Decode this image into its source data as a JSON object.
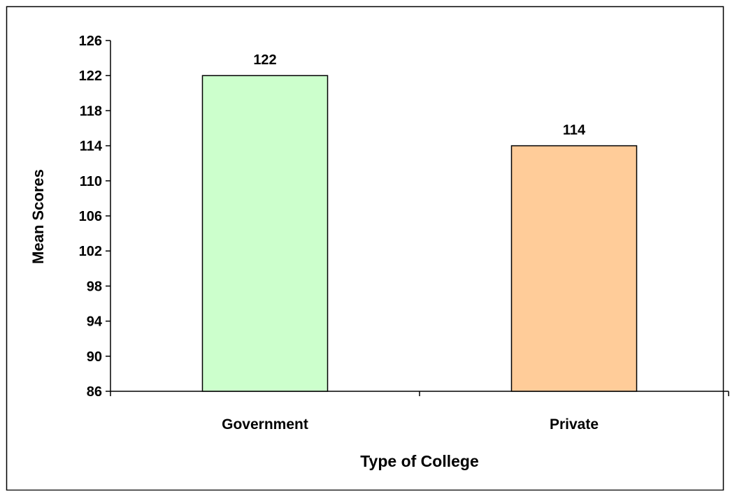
{
  "chart_data": {
    "type": "bar",
    "categories": [
      "Government",
      "Private"
    ],
    "values": [
      122,
      114
    ],
    "data_labels": [
      "122",
      "114"
    ],
    "title": "",
    "xlabel": "Type of College",
    "ylabel": "Mean Scores",
    "ylim": [
      86,
      126
    ],
    "yticks": [
      86,
      90,
      94,
      98,
      102,
      106,
      110,
      114,
      118,
      122,
      126
    ],
    "ytick_labels": [
      "86",
      "90",
      "94",
      "98",
      "102",
      "106",
      "110",
      "114",
      "118",
      "122",
      "126"
    ],
    "grid": false,
    "legend": "none",
    "colors": [
      "#ccffcc",
      "#ffcc99"
    ],
    "bar_edge_color": "#000000"
  }
}
